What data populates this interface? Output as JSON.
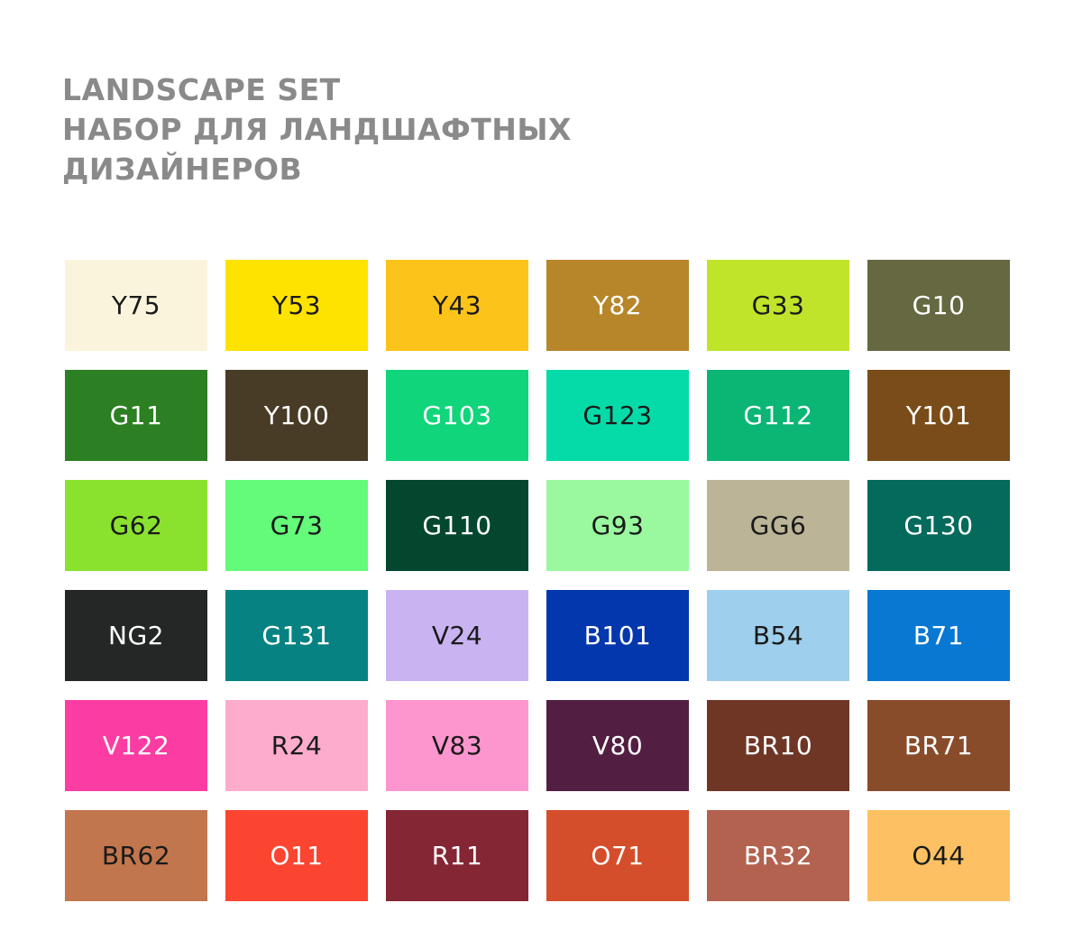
{
  "title": {
    "lines": [
      "LANDSCAPE SET",
      "НАБОР ДЛЯ ЛАНДШАФТНЫХ",
      "ДИЗАЙНЕРОВ"
    ],
    "color": "#8a8a8a"
  },
  "swatches": [
    {
      "code": "Y75",
      "bg": "#fbf4dc",
      "fg": "#1a1a1a"
    },
    {
      "code": "Y53",
      "bg": "#ffe300",
      "fg": "#1a1a1a"
    },
    {
      "code": "Y43",
      "bg": "#fcc31b",
      "fg": "#1a1a1a"
    },
    {
      "code": "Y82",
      "bg": "#b7862a",
      "fg": "#ffffff"
    },
    {
      "code": "G33",
      "bg": "#bfe429",
      "fg": "#1a1a1a"
    },
    {
      "code": "G10",
      "bg": "#666841",
      "fg": "#ffffff"
    },
    {
      "code": "G11",
      "bg": "#2c7f22",
      "fg": "#ffffff"
    },
    {
      "code": "Y100",
      "bg": "#483c26",
      "fg": "#ffffff"
    },
    {
      "code": "G103",
      "bg": "#11d57a",
      "fg": "#ffffff"
    },
    {
      "code": "G123",
      "bg": "#05dba8",
      "fg": "#1a1a1a"
    },
    {
      "code": "G112",
      "bg": "#0bb574",
      "fg": "#ffffff"
    },
    {
      "code": "Y101",
      "bg": "#7a4c19",
      "fg": "#ffffff"
    },
    {
      "code": "G62",
      "bg": "#8ae22f",
      "fg": "#1a1a1a"
    },
    {
      "code": "G73",
      "bg": "#64fa7a",
      "fg": "#1a1a1a"
    },
    {
      "code": "G110",
      "bg": "#03472f",
      "fg": "#ffffff"
    },
    {
      "code": "G93",
      "bg": "#9af89e",
      "fg": "#1a1a1a"
    },
    {
      "code": "GG6",
      "bg": "#bbb497",
      "fg": "#1a1a1a"
    },
    {
      "code": "G130",
      "bg": "#046a5c",
      "fg": "#ffffff"
    },
    {
      "code": "NG2",
      "bg": "#242726",
      "fg": "#ffffff"
    },
    {
      "code": "G131",
      "bg": "#068282",
      "fg": "#ffffff"
    },
    {
      "code": "V24",
      "bg": "#c9b3f1",
      "fg": "#1a1a1a"
    },
    {
      "code": "B101",
      "bg": "#0337ad",
      "fg": "#ffffff"
    },
    {
      "code": "B54",
      "bg": "#9ecfec",
      "fg": "#1a1a1a"
    },
    {
      "code": "B71",
      "bg": "#0978d3",
      "fg": "#ffffff"
    },
    {
      "code": "V122",
      "bg": "#fb3ca3",
      "fg": "#ffffff"
    },
    {
      "code": "R24",
      "bg": "#fdaccd",
      "fg": "#1a1a1a"
    },
    {
      "code": "V83",
      "bg": "#fd96cf",
      "fg": "#1a1a1a"
    },
    {
      "code": "V80",
      "bg": "#521e41",
      "fg": "#ffffff"
    },
    {
      "code": "BR10",
      "bg": "#6f3626",
      "fg": "#ffffff"
    },
    {
      "code": "BR71",
      "bg": "#894c2a",
      "fg": "#ffffff"
    },
    {
      "code": "BR62",
      "bg": "#c2764d",
      "fg": "#1a1a1a"
    },
    {
      "code": "O11",
      "bg": "#fb4530",
      "fg": "#ffffff"
    },
    {
      "code": "R11",
      "bg": "#852635",
      "fg": "#ffffff"
    },
    {
      "code": "O71",
      "bg": "#d54e2c",
      "fg": "#ffffff"
    },
    {
      "code": "BR32",
      "bg": "#b2624f",
      "fg": "#ffffff"
    },
    {
      "code": "O44",
      "bg": "#fdc163",
      "fg": "#1a1a1a"
    }
  ]
}
